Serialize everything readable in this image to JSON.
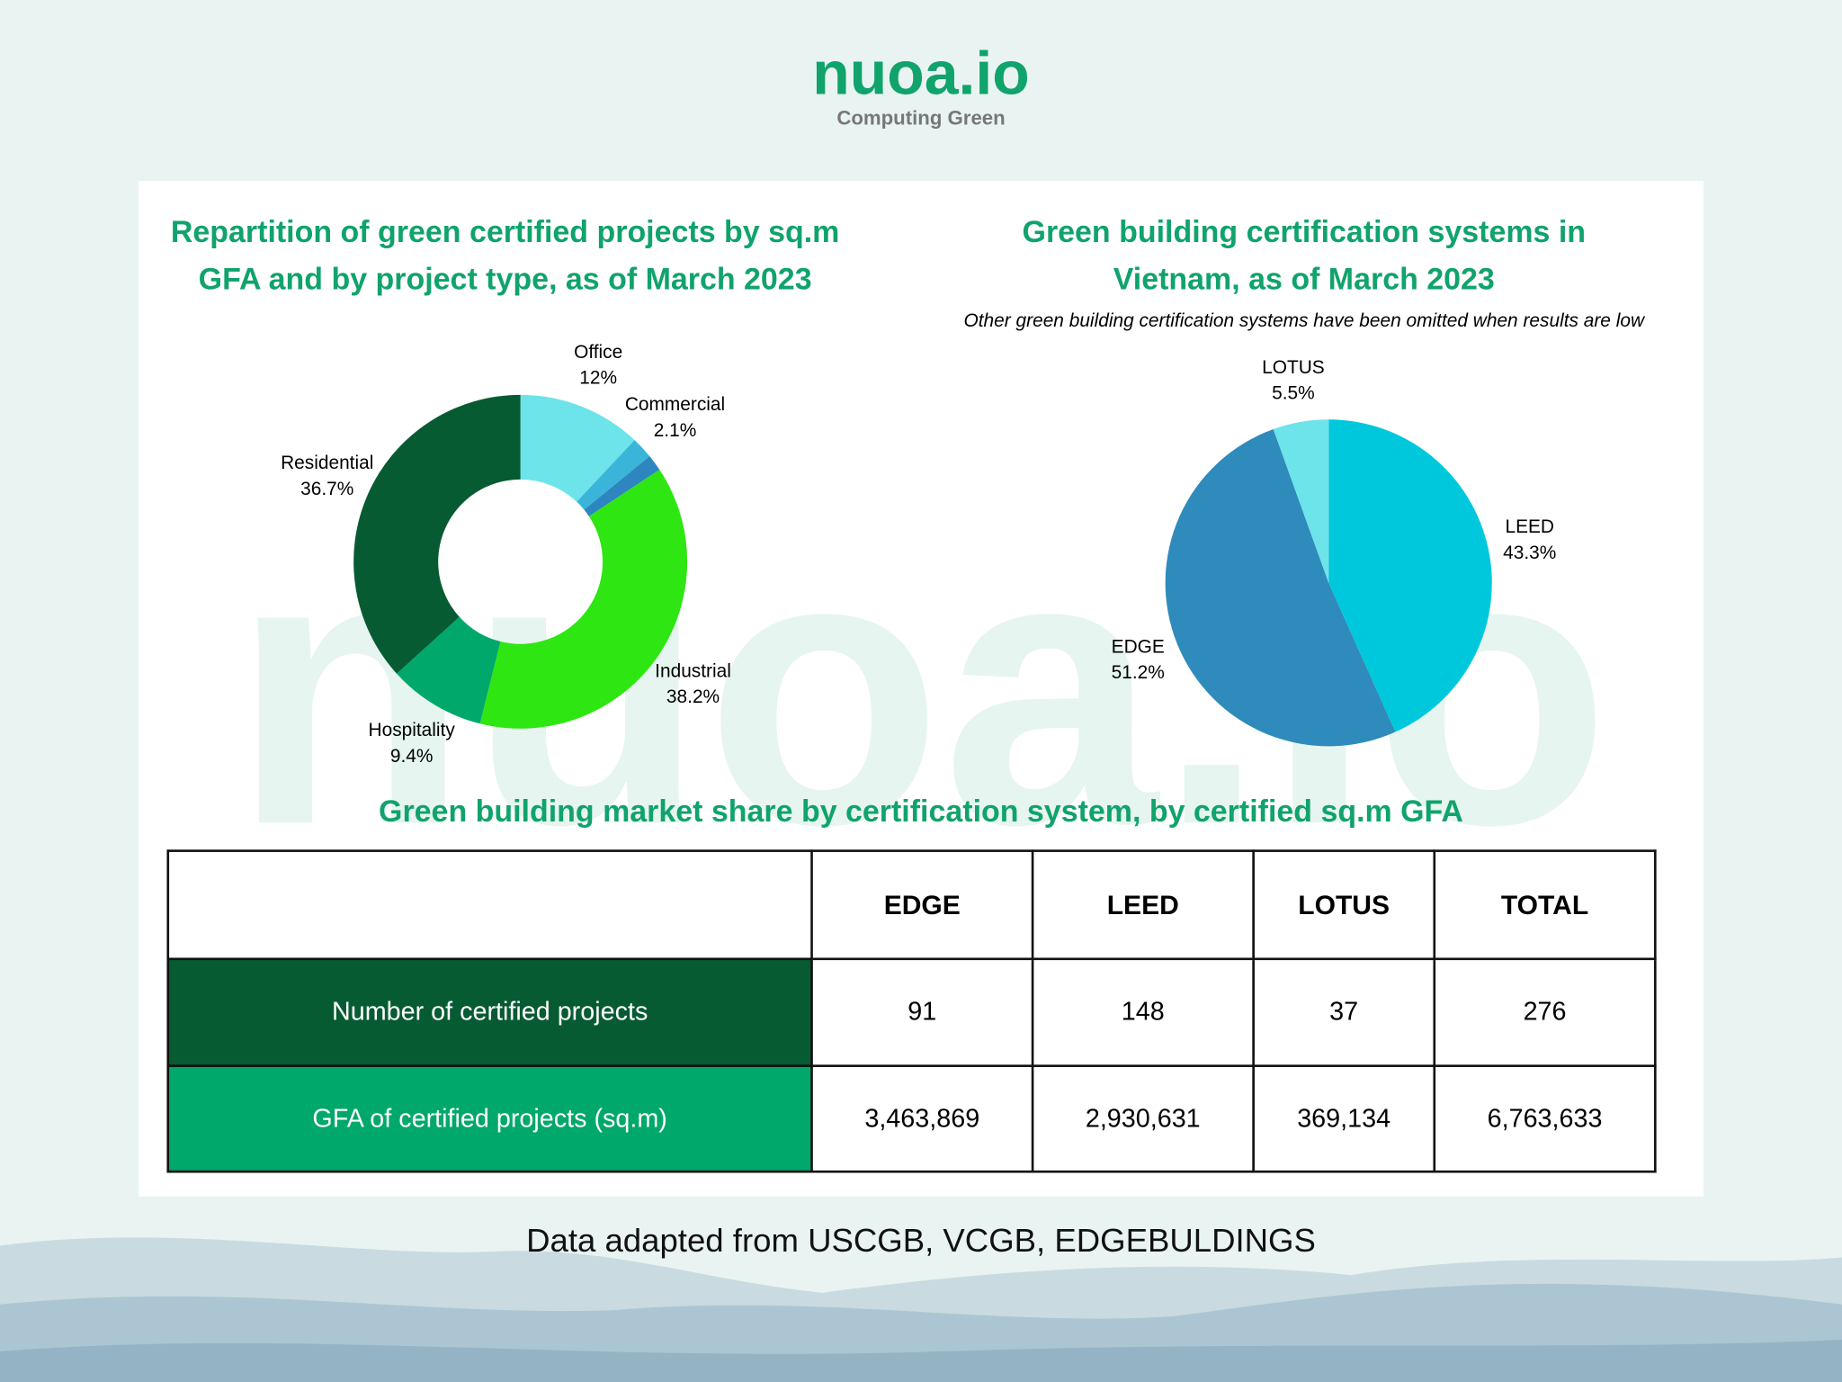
{
  "header": {
    "logo": "nuoa.io",
    "tagline": "Computing  Green"
  },
  "chart_data": [
    {
      "type": "donut",
      "title": "Repartition of green certified projects by sq.m GFA and by project type, as of March 2023",
      "categories": [
        "Office",
        "Commercial",
        null,
        "Industrial",
        "Hospitality",
        "Residential"
      ],
      "values": [
        12,
        2.1,
        1.6,
        38.2,
        9.4,
        36.7
      ],
      "value_labels": [
        "12%",
        "2.1%",
        null,
        "38.2%",
        "9.4%",
        "36.7%"
      ],
      "colors": [
        "#6de3ea",
        "#3ab5d9",
        "#2e86c1",
        "#2ee612",
        "#00a86b",
        "#075b32"
      ]
    },
    {
      "type": "pie",
      "title": "Green building certification systems in Vietnam, as of March 2023",
      "subtitle": "Other green building certification systems have been omitted when results are low",
      "categories": [
        "LEED",
        "EDGE",
        "LOTUS"
      ],
      "values": [
        43.3,
        51.2,
        5.5
      ],
      "value_labels": [
        "43.3%",
        "51.2%",
        "5.5%"
      ],
      "colors": [
        "#00c8dc",
        "#2e8bbb",
        "#6de3ea"
      ]
    }
  ],
  "table": {
    "title": "Green building market share by certification system, by certified sq.m GFA",
    "columns": [
      "EDGE",
      "LEED",
      "LOTUS",
      "TOTAL"
    ],
    "rows": [
      {
        "label": "Number of certified projects",
        "cells": [
          "91",
          "148",
          "37",
          "276"
        ]
      },
      {
        "label": "GFA of certified projects (sq.m)",
        "cells": [
          "3,463,869",
          "2,930,631",
          "369,134",
          "6,763,633"
        ]
      }
    ]
  },
  "footer": "Data adapted from USCGB, VCGB, EDGEBULDINGS"
}
